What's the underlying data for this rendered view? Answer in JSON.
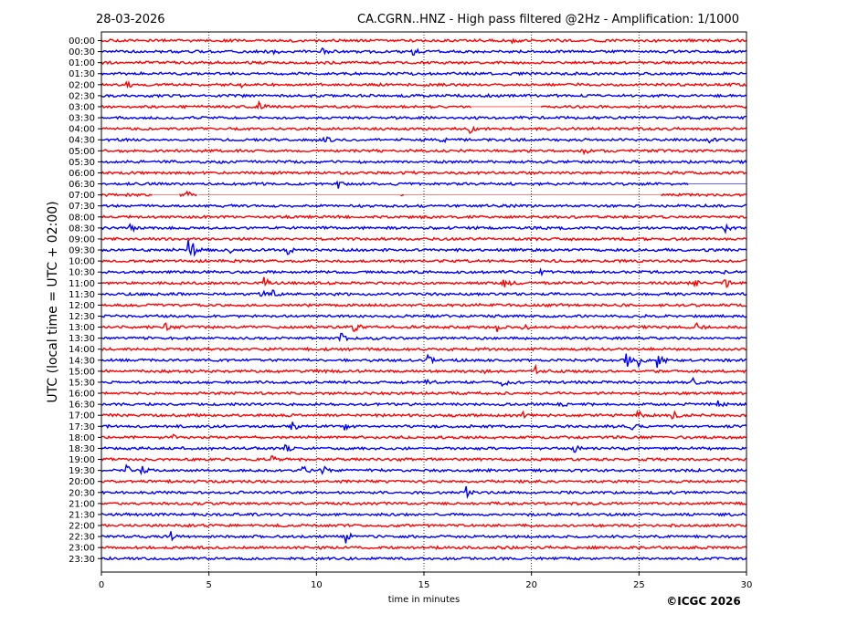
{
  "header": {
    "date": "28-03-2026",
    "title": "CA.CGRN..HNZ - High pass filtered @2Hz - Amplification: 1/1000"
  },
  "copyright": "©ICGC 2026",
  "chart_data": {
    "type": "line",
    "title": "CA.CGRN..HNZ - High pass filtered @2Hz - Amplification: 1/1000",
    "xlabel": "time in minutes",
    "ylabel": "UTC (local time = UTC + 02:00)",
    "xlim": [
      0,
      30
    ],
    "xticks": [
      0,
      5,
      10,
      15,
      20,
      25,
      30
    ],
    "grid": "vertical dotted lines at x ticks",
    "row_colors": [
      "#ff0000",
      "#0000ff"
    ],
    "row_labels": [
      "00:00",
      "00:30",
      "01:00",
      "01:30",
      "02:00",
      "02:30",
      "03:00",
      "03:30",
      "04:00",
      "04:30",
      "05:00",
      "05:30",
      "06:00",
      "06:30",
      "07:00",
      "07:30",
      "08:00",
      "08:30",
      "09:00",
      "09:30",
      "10:00",
      "10:30",
      "11:00",
      "11:30",
      "12:00",
      "12:30",
      "13:00",
      "13:30",
      "14:00",
      "14:30",
      "15:00",
      "15:30",
      "16:00",
      "16:30",
      "17:00",
      "17:30",
      "18:00",
      "18:30",
      "19:00",
      "19:30",
      "20:00",
      "20:30",
      "21:00",
      "21:30",
      "22:00",
      "22:30",
      "23:00",
      "23:30"
    ],
    "events": [
      {
        "row": 0,
        "t": 19.1,
        "amp": 2
      },
      {
        "row": 1,
        "t": 8.0,
        "amp": 4
      },
      {
        "row": 1,
        "t": 10.3,
        "amp": 3
      },
      {
        "row": 1,
        "t": 14.5,
        "amp": 3
      },
      {
        "row": 4,
        "t": 1.2,
        "amp": 3
      },
      {
        "row": 4,
        "t": 6.5,
        "amp": 3
      },
      {
        "row": 6,
        "t": 7.4,
        "amp": 5
      },
      {
        "row": 8,
        "t": 17.1,
        "amp": 5
      },
      {
        "row": 9,
        "t": 10.4,
        "amp": 4
      },
      {
        "row": 9,
        "t": 15.8,
        "amp": 3
      },
      {
        "row": 9,
        "t": 28.3,
        "amp": 3
      },
      {
        "row": 10,
        "t": 11.8,
        "amp": 3
      },
      {
        "row": 10,
        "t": 22.4,
        "amp": 3
      },
      {
        "row": 13,
        "t": 11.0,
        "amp": 5
      },
      {
        "row": 14,
        "t": 4.0,
        "amp": 3
      },
      {
        "row": 17,
        "t": 1.3,
        "amp": 5
      },
      {
        "row": 17,
        "t": 29.0,
        "amp": 4
      },
      {
        "row": 19,
        "t": 4.1,
        "amp": 18
      },
      {
        "row": 19,
        "t": 6.0,
        "amp": 4
      },
      {
        "row": 19,
        "t": 8.7,
        "amp": 4
      },
      {
        "row": 21,
        "t": 20.5,
        "amp": 4
      },
      {
        "row": 21,
        "t": 29.0,
        "amp": 4
      },
      {
        "row": 22,
        "t": 7.6,
        "amp": 6
      },
      {
        "row": 22,
        "t": 18.7,
        "amp": 5
      },
      {
        "row": 22,
        "t": 27.6,
        "amp": 4
      },
      {
        "row": 22,
        "t": 29.0,
        "amp": 5
      },
      {
        "row": 23,
        "t": 7.4,
        "amp": 5
      },
      {
        "row": 23,
        "t": 8.0,
        "amp": 4
      },
      {
        "row": 26,
        "t": 3.0,
        "amp": 5
      },
      {
        "row": 26,
        "t": 11.7,
        "amp": 7
      },
      {
        "row": 26,
        "t": 18.4,
        "amp": 4
      },
      {
        "row": 26,
        "t": 19.6,
        "amp": 4
      },
      {
        "row": 26,
        "t": 27.7,
        "amp": 4
      },
      {
        "row": 27,
        "t": 11.1,
        "amp": 8
      },
      {
        "row": 27,
        "t": 12.5,
        "amp": 4
      },
      {
        "row": 29,
        "t": 15.2,
        "amp": 5
      },
      {
        "row": 29,
        "t": 24.4,
        "amp": 11
      },
      {
        "row": 29,
        "t": 25.0,
        "amp": 5
      },
      {
        "row": 29,
        "t": 25.9,
        "amp": 9
      },
      {
        "row": 30,
        "t": 17.8,
        "amp": 4
      },
      {
        "row": 30,
        "t": 20.2,
        "amp": 5
      },
      {
        "row": 31,
        "t": 15.1,
        "amp": 6
      },
      {
        "row": 31,
        "t": 18.7,
        "amp": 4
      },
      {
        "row": 31,
        "t": 27.5,
        "amp": 4
      },
      {
        "row": 33,
        "t": 21.2,
        "amp": 4
      },
      {
        "row": 33,
        "t": 28.7,
        "amp": 4
      },
      {
        "row": 34,
        "t": 19.6,
        "amp": 4
      },
      {
        "row": 34,
        "t": 25.0,
        "amp": 4
      },
      {
        "row": 34,
        "t": 26.6,
        "amp": 4
      },
      {
        "row": 35,
        "t": 8.9,
        "amp": 4
      },
      {
        "row": 35,
        "t": 11.3,
        "amp": 4
      },
      {
        "row": 35,
        "t": 24.6,
        "amp": 4
      },
      {
        "row": 36,
        "t": 3.4,
        "amp": 4
      },
      {
        "row": 37,
        "t": 8.6,
        "amp": 4
      },
      {
        "row": 37,
        "t": 22.0,
        "amp": 4
      },
      {
        "row": 38,
        "t": 7.9,
        "amp": 4
      },
      {
        "row": 39,
        "t": 1.2,
        "amp": 5
      },
      {
        "row": 39,
        "t": 1.9,
        "amp": 4
      },
      {
        "row": 39,
        "t": 9.4,
        "amp": 5
      },
      {
        "row": 39,
        "t": 10.2,
        "amp": 8
      },
      {
        "row": 41,
        "t": 17.0,
        "amp": 7
      },
      {
        "row": 45,
        "t": 3.3,
        "amp": 5
      },
      {
        "row": 45,
        "t": 11.4,
        "amp": 7
      }
    ],
    "gaps": [
      {
        "row": 6,
        "from": 17.2,
        "to": 20.4
      },
      {
        "row": 13,
        "from": 27.3,
        "to": 30
      },
      {
        "row": 14,
        "from": 2.4,
        "to": 3.6
      },
      {
        "row": 14,
        "from": 4.5,
        "to": 13.9
      },
      {
        "row": 14,
        "from": 14.1,
        "to": 26.0
      }
    ]
  }
}
